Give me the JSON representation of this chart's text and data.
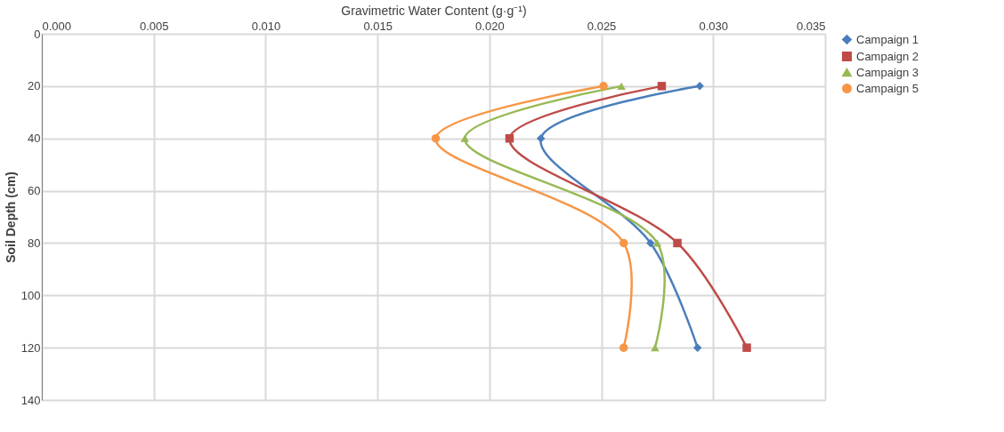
{
  "chart_data": {
    "type": "line",
    "xlabel": "Gravimetric Water Content (g·g⁻¹)",
    "ylabel": "Soil Depth (cm)",
    "xlim": [
      0,
      0.035
    ],
    "xticks": [
      {
        "value": 0,
        "label": "0.000"
      },
      {
        "value": 0.005,
        "label": "0.005"
      },
      {
        "value": 0.01,
        "label": "0.010"
      },
      {
        "value": 0.015,
        "label": "0.015"
      },
      {
        "value": 0.02,
        "label": "0.020"
      },
      {
        "value": 0.025,
        "label": "0.025"
      },
      {
        "value": 0.03,
        "label": "0.030"
      },
      {
        "value": 0.035,
        "label": "0.035"
      }
    ],
    "ylim": [
      140,
      0
    ],
    "yticks": [
      0,
      20,
      40,
      60,
      80,
      100,
      120,
      140
    ],
    "grid": true,
    "legend": "right",
    "line_style": "solid",
    "series": [
      {
        "name": "Campaign 1",
        "color": "#4a7ebb",
        "marker": "diamond",
        "x": [
          0.0294,
          0.0223,
          0.0272,
          0.0293
        ],
        "values": [
          20,
          40,
          80,
          120
        ]
      },
      {
        "name": "Campaign 2",
        "color": "#be4b48",
        "marker": "square",
        "x": [
          0.0277,
          0.0209,
          0.0284,
          0.0315
        ],
        "values": [
          20,
          40,
          80,
          120
        ]
      },
      {
        "name": "Campaign 3",
        "color": "#98b954",
        "marker": "triangle",
        "x": [
          0.0259,
          0.0189,
          0.0275,
          0.0274
        ],
        "values": [
          20,
          40,
          80,
          120
        ]
      },
      {
        "name": "Campaign 5",
        "color": "#f79646",
        "marker": "circle",
        "x": [
          0.0251,
          0.0176,
          0.026,
          0.026
        ],
        "values": [
          20,
          40,
          80,
          120
        ]
      }
    ]
  }
}
